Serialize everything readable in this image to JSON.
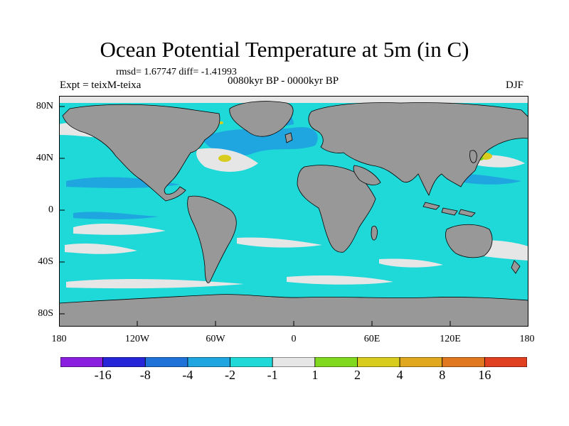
{
  "title": "Ocean Potential Temperature at 5m (in C)",
  "stats_line": "rmsd= 1.67747 diff= -1.41993",
  "experiment": "Expt = teixM-teixa",
  "period": "0080kyr BP - 0000kyr BP",
  "season": "DJF",
  "lat_labels": [
    "80N",
    "40N",
    "0",
    "40S",
    "80S"
  ],
  "lon_labels": [
    "180",
    "120W",
    "60W",
    "0",
    "60E",
    "120E",
    "180"
  ],
  "colorbar": {
    "colors": [
      "#8a1fe0",
      "#2626d8",
      "#1f73d8",
      "#1fa5e0",
      "#1fd8d8",
      "#e6e6e6",
      "#80d81f",
      "#d8cc1f",
      "#e0a81f",
      "#e0781f",
      "#e0401f"
    ],
    "labels": [
      "-16",
      "-8",
      "-4",
      "-2",
      "-1",
      "1",
      "2",
      "4",
      "8",
      "16"
    ]
  },
  "colors": {
    "land": "#989898",
    "ocean_base": "#1fd8d8",
    "ocean_mid": "#1fa5e0",
    "neutral": "#e6e6e6",
    "warm": "#d8cc1f",
    "warm2": "#80d81f"
  }
}
